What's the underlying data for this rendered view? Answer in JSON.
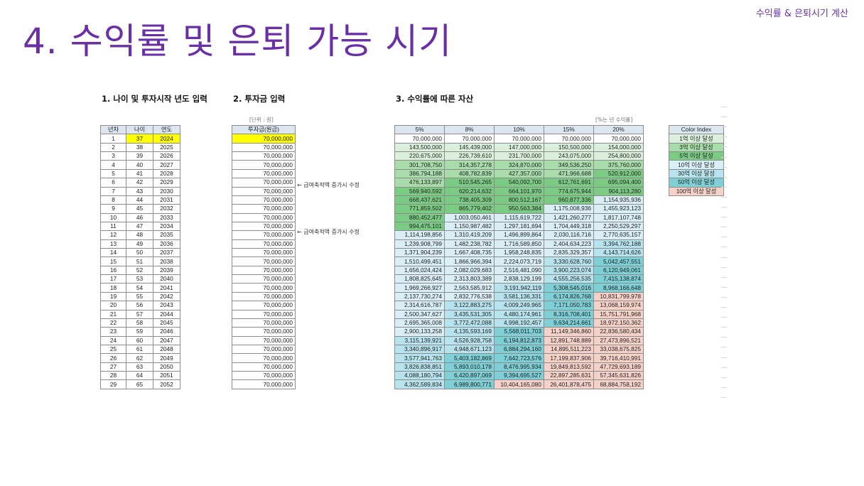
{
  "header": {
    "corner_label": "수익률 & 은퇴시기 계산",
    "title": "4. 수익률 및 은퇴 가능 시기"
  },
  "sections": {
    "s1": "1. 나이 및 투자시작 년도 입력",
    "s2": "2. 투자금 입력",
    "s3": "3. 수익률에 따른 자산"
  },
  "unit_note": "[단위 : 원]",
  "rate_note": "[%는 년 수익률]",
  "table1": {
    "headers": [
      "년차",
      "나이",
      "연도"
    ]
  },
  "table2": {
    "header": "투자금(원금)",
    "amount": "70,000,000"
  },
  "notes": [
    "← 급여축적액 증가시 수정",
    "← 급여축적액 증가시 수정"
  ],
  "table3": {
    "headers": [
      "5%",
      "8%",
      "10%",
      "15%",
      "20%"
    ]
  },
  "rows": [
    {
      "year_no": "1",
      "age": "37",
      "year": "2024",
      "v": [
        "70,000,000",
        "70,000,000",
        "70,000,000",
        "70,000,000",
        "70,000,000"
      ]
    },
    {
      "year_no": "2",
      "age": "38",
      "year": "2025",
      "v": [
        "143,500,000",
        "145,439,000",
        "147,000,000",
        "150,500,000",
        "154,000,000"
      ]
    },
    {
      "year_no": "3",
      "age": "39",
      "year": "2026",
      "v": [
        "220,675,000",
        "226,739,610",
        "231,700,000",
        "243,075,000",
        "254,800,000"
      ]
    },
    {
      "year_no": "4",
      "age": "40",
      "year": "2027",
      "v": [
        "301,708,750",
        "314,357,278",
        "324,870,000",
        "349,536,250",
        "375,760,000"
      ]
    },
    {
      "year_no": "5",
      "age": "41",
      "year": "2028",
      "v": [
        "386,794,188",
        "408,782,839",
        "427,357,000",
        "471,966,688",
        "520,912,000"
      ]
    },
    {
      "year_no": "6",
      "age": "42",
      "year": "2029",
      "v": [
        "476,133,897",
        "510,545,265",
        "540,092,700",
        "612,761,691",
        "695,094,400"
      ]
    },
    {
      "year_no": "7",
      "age": "43",
      "year": "2030",
      "v": [
        "569,940,592",
        "620,214,632",
        "664,101,970",
        "774,675,944",
        "904,113,280"
      ]
    },
    {
      "year_no": "8",
      "age": "44",
      "year": "2031",
      "v": [
        "668,437,621",
        "738,405,309",
        "800,512,167",
        "960,877,336",
        "1,154,935,936"
      ]
    },
    {
      "year_no": "9",
      "age": "45",
      "year": "2032",
      "v": [
        "771,859,502",
        "865,779,402",
        "950,563,384",
        "1,175,008,936",
        "1,455,923,123"
      ]
    },
    {
      "year_no": "10",
      "age": "46",
      "year": "2033",
      "v": [
        "880,452,477",
        "1,003,050,461",
        "1,115,619,722",
        "1,421,260,277",
        "1,817,107,748"
      ]
    },
    {
      "year_no": "11",
      "age": "47",
      "year": "2034",
      "v": [
        "994,475,101",
        "1,150,987,482",
        "1,297,181,694",
        "1,704,449,318",
        "2,250,529,297"
      ]
    },
    {
      "year_no": "12",
      "age": "48",
      "year": "2035",
      "v": [
        "1,114,198,856",
        "1,310,419,209",
        "1,496,899,864",
        "2,030,116,716",
        "2,770,635,157"
      ]
    },
    {
      "year_no": "13",
      "age": "49",
      "year": "2036",
      "v": [
        "1,239,908,799",
        "1,482,238,782",
        "1,716,589,850",
        "2,404,634,223",
        "3,394,762,188"
      ]
    },
    {
      "year_no": "14",
      "age": "50",
      "year": "2037",
      "v": [
        "1,371,904,239",
        "1,667,408,735",
        "1,958,248,835",
        "2,835,329,357",
        "4,143,714,626"
      ]
    },
    {
      "year_no": "15",
      "age": "51",
      "year": "2038",
      "v": [
        "1,510,499,451",
        "1,866,966,394",
        "2,224,073,719",
        "3,330,628,760",
        "5,042,457,551"
      ]
    },
    {
      "year_no": "16",
      "age": "52",
      "year": "2039",
      "v": [
        "1,656,024,424",
        "2,082,029,683",
        "2,516,481,090",
        "3,900,223,074",
        "6,120,949,061"
      ]
    },
    {
      "year_no": "17",
      "age": "53",
      "year": "2040",
      "v": [
        "1,808,825,645",
        "2,313,803,389",
        "2,838,129,199",
        "4,555,256,535",
        "7,415,138,874"
      ]
    },
    {
      "year_no": "18",
      "age": "54",
      "year": "2041",
      "v": [
        "1,969,266,927",
        "2,563,585,912",
        "3,191,942,119",
        "5,308,545,016",
        "8,968,166,648"
      ]
    },
    {
      "year_no": "19",
      "age": "55",
      "year": "2042",
      "v": [
        "2,137,730,274",
        "2,832,776,538",
        "3,581,136,331",
        "6,174,826,768",
        "10,831,799,978"
      ]
    },
    {
      "year_no": "20",
      "age": "56",
      "year": "2043",
      "v": [
        "2,314,616,787",
        "3,122,883,275",
        "4,009,249,965",
        "7,171,050,783",
        "13,068,159,974"
      ]
    },
    {
      "year_no": "21",
      "age": "57",
      "year": "2044",
      "v": [
        "2,500,347,627",
        "3,435,531,305",
        "4,480,174,961",
        "8,316,708,401",
        "15,751,791,968"
      ]
    },
    {
      "year_no": "22",
      "age": "58",
      "year": "2045",
      "v": [
        "2,695,365,008",
        "3,772,472,088",
        "4,998,192,457",
        "9,634,214,661",
        "18,972,150,362"
      ]
    },
    {
      "year_no": "23",
      "age": "59",
      "year": "2046",
      "v": [
        "2,900,133,258",
        "4,135,593,169",
        "5,568,011,703",
        "11,149,346,860",
        "22,836,580,434"
      ]
    },
    {
      "year_no": "24",
      "age": "60",
      "year": "2047",
      "v": [
        "3,115,139,921",
        "4,526,928,758",
        "6,194,812,873",
        "12,891,748,889",
        "27,473,896,521"
      ]
    },
    {
      "year_no": "25",
      "age": "61",
      "year": "2048",
      "v": [
        "3,340,896,917",
        "4,948,671,123",
        "6,884,294,160",
        "14,895,511,223",
        "33,038,675,825"
      ]
    },
    {
      "year_no": "26",
      "age": "62",
      "year": "2049",
      "v": [
        "3,577,941,763",
        "5,403,182,869",
        "7,642,723,576",
        "17,199,837,906",
        "39,716,410,991"
      ]
    },
    {
      "year_no": "27",
      "age": "63",
      "year": "2050",
      "v": [
        "3,826,838,851",
        "5,893,010,178",
        "8,476,995,934",
        "19,849,813,592",
        "47,729,693,189"
      ]
    },
    {
      "year_no": "28",
      "age": "64",
      "year": "2051",
      "v": [
        "4,088,180,794",
        "6,420,897,069",
        "9,394,695,527",
        "22,897,285,631",
        "57,345,631,826"
      ]
    },
    {
      "year_no": "29",
      "age": "65",
      "year": "2052",
      "v": [
        "4,362,589,834",
        "6,989,800,771",
        "10,404,165,080",
        "26,401,878,475",
        "68,884,758,192"
      ]
    }
  ],
  "color_index": {
    "header": "Color Index",
    "items": [
      {
        "label": "1억 이상 달성",
        "color": "#dbf0dc"
      },
      {
        "label": "3억 이상 달성",
        "color": "#a9dcab"
      },
      {
        "label": "5억 이상 달성",
        "color": "#7ccb85"
      },
      {
        "label": "10억 이상 달성",
        "color": "#d9eef5"
      },
      {
        "label": "30억 이상 달성",
        "color": "#b7e3ee"
      },
      {
        "label": "50억 이상 달성",
        "color": "#7ecfd6"
      },
      {
        "label": "100억 이상 달성",
        "color": "#f6d1c8"
      }
    ]
  },
  "colors": {
    "title": "#6a2fa6",
    "header_fill": "#dce6f1",
    "input_highlight": "#ffff00"
  }
}
